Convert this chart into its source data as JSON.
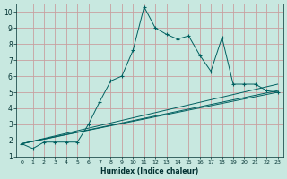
{
  "title": "",
  "xlabel": "Humidex (Indice chaleur)",
  "ylabel": "",
  "background_color": "#c8e8e0",
  "grid_color": "#c8a0a0",
  "line_color": "#006060",
  "xlim": [
    -0.5,
    23.5
  ],
  "ylim": [
    1,
    10.5
  ],
  "xticks": [
    0,
    1,
    2,
    3,
    4,
    5,
    6,
    7,
    8,
    9,
    10,
    11,
    12,
    13,
    14,
    15,
    16,
    17,
    18,
    19,
    20,
    21,
    22,
    23
  ],
  "yticks": [
    1,
    2,
    3,
    4,
    5,
    6,
    7,
    8,
    9,
    10
  ],
  "series": [
    {
      "x": [
        0,
        1,
        2,
        3,
        4,
        5,
        6,
        7,
        8,
        9,
        10,
        11,
        12,
        13,
        14,
        15,
        16,
        17,
        18,
        19,
        20,
        21,
        22,
        23
      ],
      "y": [
        1.8,
        1.5,
        1.9,
        1.9,
        1.9,
        1.9,
        3.0,
        4.4,
        5.7,
        6.0,
        7.6,
        10.3,
        9.0,
        8.6,
        8.3,
        8.5,
        7.3,
        6.3,
        8.4,
        5.5,
        5.5,
        5.5,
        5.1,
        5.0
      ],
      "marker": true
    },
    {
      "x": [
        0,
        23
      ],
      "y": [
        1.8,
        5.1
      ],
      "marker": false
    },
    {
      "x": [
        0,
        23
      ],
      "y": [
        1.8,
        5.5
      ],
      "marker": false
    },
    {
      "x": [
        0,
        23
      ],
      "y": [
        1.8,
        5.0
      ],
      "marker": false
    }
  ]
}
